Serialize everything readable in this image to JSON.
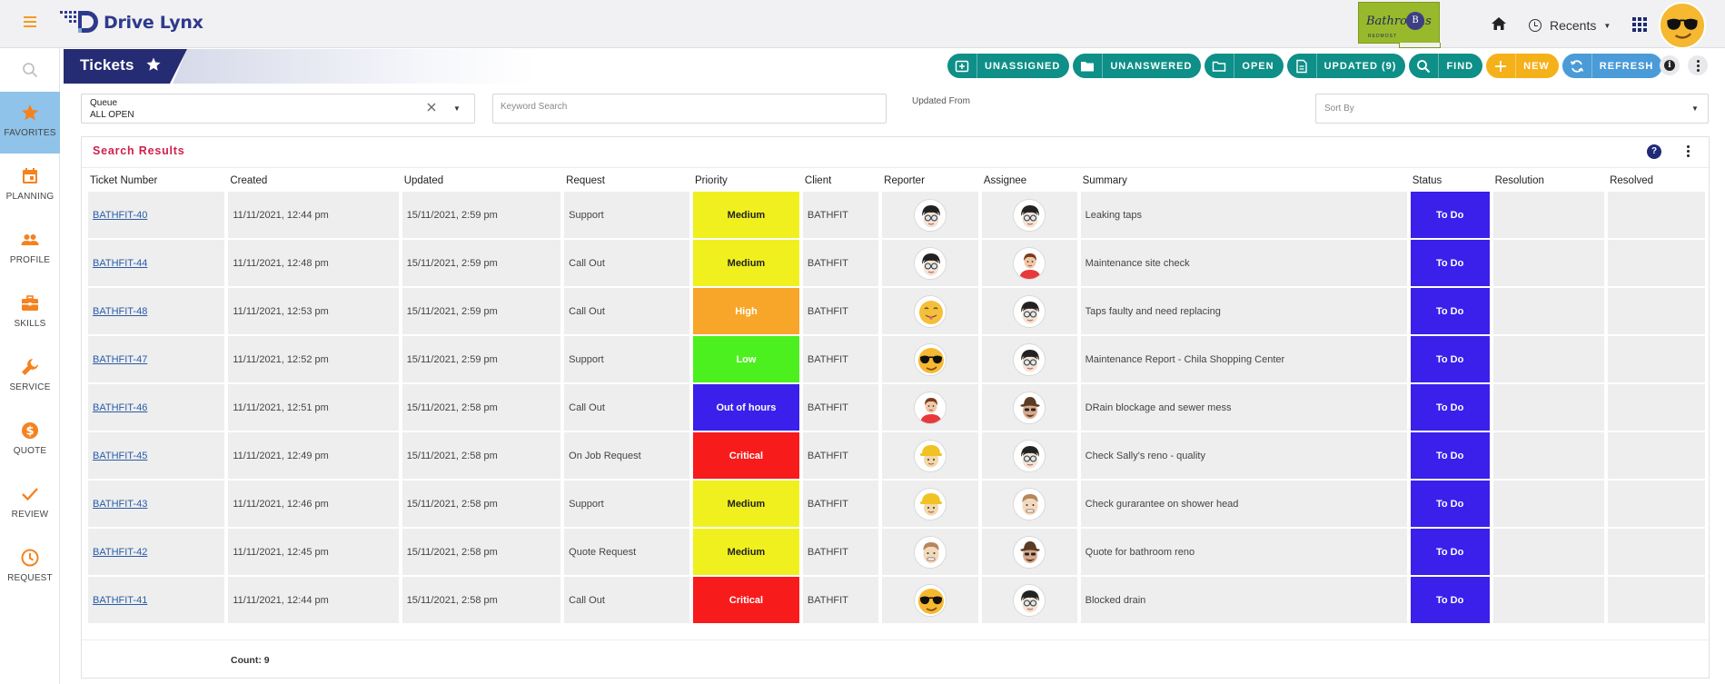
{
  "app": {
    "name": "Drive Lynx",
    "brand_badge": {
      "name": "Bathrooms",
      "sub": "REDMOST",
      "initial": "B"
    }
  },
  "header": {
    "recents_label": "Recents"
  },
  "sidebar": {
    "items": [
      {
        "label": "FAVORITES",
        "icon": "star-icon",
        "active": true
      },
      {
        "label": "PLANNING",
        "icon": "calendar-icon"
      },
      {
        "label": "PROFILE",
        "icon": "people-icon"
      },
      {
        "label": "SKILLS",
        "icon": "briefcase-icon"
      },
      {
        "label": "SERVICE",
        "icon": "wrench-icon"
      },
      {
        "label": "QUOTE",
        "icon": "dollar-icon"
      },
      {
        "label": "REVIEW",
        "icon": "check-icon"
      },
      {
        "label": "REQUEST",
        "icon": "clock-icon"
      }
    ]
  },
  "page": {
    "title": "Tickets"
  },
  "actions": [
    {
      "label": "UNASSIGNED",
      "icon": "inbox-icon",
      "color": "#0e8f88"
    },
    {
      "label": "UNANSWERED",
      "icon": "folder-icon",
      "color": "#0e8f88"
    },
    {
      "label": "OPEN",
      "icon": "folder-open-icon",
      "color": "#0e8f88"
    },
    {
      "label": "UPDATED (9)",
      "icon": "document-icon",
      "color": "#0e8f88"
    },
    {
      "label": "FIND",
      "icon": "search-icon",
      "color": "#0e8f88"
    },
    {
      "label": "NEW",
      "icon": "plus-icon",
      "color": "#f5b11a"
    },
    {
      "label": "REFRESH",
      "icon": "refresh-icon",
      "color": "#4a9bd7"
    }
  ],
  "filters": {
    "queue_label": "Queue",
    "queue_value": "ALL OPEN",
    "keyword_placeholder": "Keyword Search",
    "updated_from_label": "Updated From",
    "sort_by_placeholder": "Sort By"
  },
  "results": {
    "title": "Search Results",
    "columns": [
      "Ticket Number",
      "Created",
      "Updated",
      "Request",
      "Priority",
      "Client",
      "Reporter",
      "Assignee",
      "Summary",
      "Status",
      "Resolution",
      "Resolved"
    ],
    "rows": [
      {
        "ticket": "BATHFIT-40",
        "created": "11/11/2021, 12:44 pm",
        "updated": "15/11/2021, 2:59 pm",
        "request": "Support",
        "priority": "Medium",
        "client": "BATHFIT",
        "reporter": "glasses-man",
        "assignee": "glasses-man",
        "summary": "Leaking taps",
        "status": "To Do",
        "resolution": "",
        "resolved": ""
      },
      {
        "ticket": "BATHFIT-44",
        "created": "11/11/2021, 12:48 pm",
        "updated": "15/11/2021, 2:59 pm",
        "request": "Call Out",
        "priority": "Medium",
        "client": "BATHFIT",
        "reporter": "glasses-man",
        "assignee": "red-woman",
        "summary": "Maintenance site check",
        "status": "To Do",
        "resolution": "",
        "resolved": ""
      },
      {
        "ticket": "BATHFIT-48",
        "created": "11/11/2021, 12:53 pm",
        "updated": "15/11/2021, 2:59 pm",
        "request": "Call Out",
        "priority": "High",
        "client": "BATHFIT",
        "reporter": "tongue-emoji",
        "assignee": "glasses-man",
        "summary": "Taps faulty and need replacing",
        "status": "To Do",
        "resolution": "",
        "resolved": ""
      },
      {
        "ticket": "BATHFIT-47",
        "created": "11/11/2021, 12:52 pm",
        "updated": "15/11/2021, 2:59 pm",
        "request": "Support",
        "priority": "Low",
        "client": "BATHFIT",
        "reporter": "cool-emoji",
        "assignee": "glasses-man",
        "summary": "Maintenance Report - Chila Shopping Center",
        "status": "To Do",
        "resolution": "",
        "resolved": ""
      },
      {
        "ticket": "BATHFIT-46",
        "created": "11/11/2021, 12:51 pm",
        "updated": "15/11/2021, 2:58 pm",
        "request": "Call Out",
        "priority": "Out of hours",
        "client": "BATHFIT",
        "reporter": "red-woman",
        "assignee": "hat-man",
        "summary": "DRain blockage and sewer mess",
        "status": "To Do",
        "resolution": "",
        "resolved": ""
      },
      {
        "ticket": "BATHFIT-45",
        "created": "11/11/2021, 12:49 pm",
        "updated": "15/11/2021, 2:58 pm",
        "request": "On Job Request",
        "priority": "Critical",
        "client": "BATHFIT",
        "reporter": "hardhat-man",
        "assignee": "glasses-man",
        "summary": "Check Sally's reno - quality",
        "status": "To Do",
        "resolution": "",
        "resolved": ""
      },
      {
        "ticket": "BATHFIT-43",
        "created": "11/11/2021, 12:46 pm",
        "updated": "15/11/2021, 2:58 pm",
        "request": "Support",
        "priority": "Medium",
        "client": "BATHFIT",
        "reporter": "hardhat-man",
        "assignee": "plain-man",
        "summary": "Check gurarantee on shower head",
        "status": "To Do",
        "resolution": "",
        "resolved": ""
      },
      {
        "ticket": "BATHFIT-42",
        "created": "11/11/2021, 12:45 pm",
        "updated": "15/11/2021, 2:58 pm",
        "request": "Quote Request",
        "priority": "Medium",
        "client": "BATHFIT",
        "reporter": "plain-man",
        "assignee": "hat-man",
        "summary": "Quote for bathroom reno",
        "status": "To Do",
        "resolution": "",
        "resolved": ""
      },
      {
        "ticket": "BATHFIT-41",
        "created": "11/11/2021, 12:44 pm",
        "updated": "15/11/2021, 2:58 pm",
        "request": "Call Out",
        "priority": "Critical",
        "client": "BATHFIT",
        "reporter": "cool-emoji",
        "assignee": "glasses-man",
        "summary": "Blocked drain",
        "status": "To Do",
        "resolution": "",
        "resolved": ""
      }
    ],
    "count_label": "Count: 9"
  },
  "priority_colors": {
    "Medium": "#f0f01f",
    "High": "#f8a62a",
    "Low": "#4df01f",
    "Out of hours": "#3a20ea",
    "Critical": "#f81b1b"
  },
  "status_color": "#3a20ea"
}
